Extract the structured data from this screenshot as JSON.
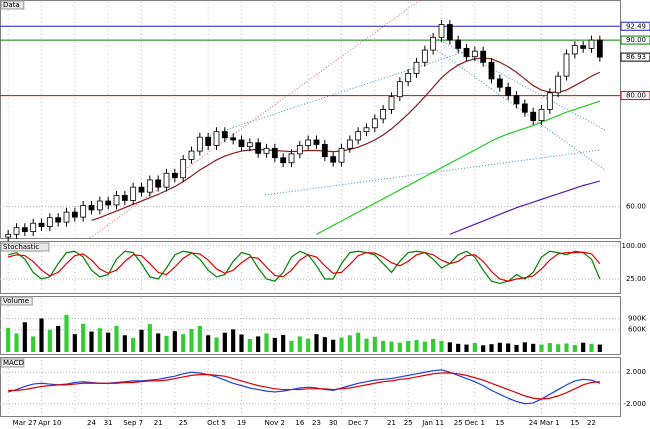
{
  "chart_data": [
    {
      "type": "candlestick",
      "title": "Data",
      "categories": [
        null,
        null,
        "Mar 27",
        null,
        null,
        "Apr 10",
        null,
        null,
        null,
        null,
        "24",
        null,
        "31",
        null,
        null,
        "Sep 7",
        null,
        null,
        "21",
        null,
        null,
        "25",
        null,
        null,
        null,
        "Oct 5",
        null,
        null,
        "19",
        null,
        null,
        null,
        "Nov 2",
        null,
        null,
        "16",
        null,
        "23",
        null,
        "30",
        null,
        null,
        "Dec 7",
        null,
        null,
        null,
        "21",
        null,
        "25",
        null,
        null,
        "Jan 11",
        null,
        null,
        "25",
        null,
        "Dec 1",
        null,
        null,
        "15",
        null,
        null,
        null,
        "24",
        null,
        "Mar 1",
        null,
        null,
        "15",
        null,
        "22",
        null
      ],
      "open": [
        54.5,
        55.0,
        56.2,
        55.5,
        57.0,
        56.4,
        58.0,
        57.2,
        59.0,
        58.1,
        60.2,
        59.4,
        61.0,
        60.3,
        62.0,
        61.1,
        63.5,
        62.6,
        64.8,
        63.5,
        66.0,
        65.2,
        68.5,
        70.0,
        72.5,
        71.0,
        73.5,
        72.4,
        72.0,
        70.8,
        71.5,
        69.6,
        70.5,
        68.8,
        67.9,
        69.5,
        71.0,
        72.0,
        71.2,
        69.0,
        68.0,
        70.5,
        72.0,
        73.5,
        74.2,
        75.8,
        77.5,
        79.8,
        82.5,
        84.0,
        86.0,
        88.2,
        90.5,
        92.8,
        90.0,
        88.5,
        87.0,
        88.0,
        86.0,
        83.0,
        81.5,
        80.0,
        78.5,
        77.0,
        75.5,
        77.5,
        80.5,
        83.5,
        87.5,
        89.0,
        88.5,
        90.0
      ],
      "high": [
        55.8,
        57.0,
        57.0,
        57.8,
        57.8,
        58.8,
        58.8,
        59.8,
        59.8,
        61.0,
        61.0,
        61.8,
        61.8,
        62.8,
        62.8,
        64.3,
        64.3,
        65.6,
        65.6,
        66.8,
        66.8,
        69.3,
        70.8,
        73.3,
        73.3,
        74.3,
        74.3,
        73.2,
        72.8,
        72.3,
        72.3,
        71.3,
        71.3,
        69.6,
        70.3,
        71.8,
        72.8,
        72.8,
        72.0,
        69.8,
        71.3,
        72.8,
        74.3,
        75.0,
        76.6,
        78.3,
        80.6,
        83.3,
        84.8,
        86.8,
        89.0,
        91.3,
        93.6,
        93.6,
        90.8,
        89.3,
        88.8,
        88.8,
        86.8,
        83.8,
        82.3,
        80.8,
        79.3,
        77.8,
        78.3,
        81.3,
        84.3,
        88.3,
        89.8,
        89.8,
        90.8,
        90.8
      ],
      "low": [
        53.7,
        54.2,
        54.7,
        54.7,
        55.6,
        55.6,
        56.4,
        56.4,
        57.3,
        57.3,
        58.6,
        58.6,
        59.5,
        59.5,
        60.3,
        60.3,
        61.8,
        61.8,
        62.7,
        62.7,
        64.4,
        64.4,
        67.7,
        69.2,
        70.2,
        70.2,
        71.6,
        71.2,
        70.0,
        70.0,
        68.8,
        68.8,
        68.0,
        67.1,
        67.1,
        68.7,
        70.2,
        70.4,
        68.2,
        67.2,
        67.2,
        69.7,
        71.2,
        72.7,
        73.4,
        75.0,
        76.7,
        79.0,
        81.7,
        83.2,
        85.2,
        87.4,
        89.7,
        89.2,
        87.7,
        86.2,
        86.2,
        85.2,
        82.2,
        80.7,
        79.2,
        77.7,
        76.2,
        74.7,
        74.7,
        76.7,
        79.7,
        82.7,
        86.7,
        87.7,
        87.7,
        86.1
      ],
      "close": [
        55.0,
        56.2,
        55.5,
        57.0,
        56.4,
        58.0,
        57.2,
        59.0,
        58.1,
        60.2,
        59.4,
        61.0,
        60.3,
        62.0,
        61.1,
        63.5,
        62.6,
        64.8,
        63.5,
        66.0,
        65.2,
        68.5,
        70.0,
        72.5,
        71.0,
        73.5,
        72.4,
        72.0,
        70.8,
        71.5,
        69.6,
        70.5,
        68.8,
        67.9,
        69.5,
        71.0,
        72.0,
        71.2,
        69.0,
        68.0,
        70.5,
        72.0,
        73.5,
        74.2,
        75.8,
        77.5,
        79.8,
        82.5,
        84.0,
        86.0,
        88.2,
        90.5,
        92.8,
        90.0,
        88.5,
        87.0,
        88.0,
        86.0,
        83.0,
        81.5,
        80.0,
        78.5,
        77.0,
        75.5,
        77.5,
        80.5,
        83.5,
        87.5,
        89.0,
        88.5,
        90.0,
        86.93
      ],
      "ylim": [
        54.7,
        96.5
      ],
      "yticks": [
        {
          "value": 60,
          "label": "60.00"
        }
      ],
      "levels": [
        {
          "value": 92.49,
          "color": "#2020c0"
        },
        {
          "value": 90,
          "label": "90.00",
          "color": "#008000"
        },
        {
          "value": 80,
          "label": "80.00",
          "color": "#e00000"
        }
      ],
      "overlays": [
        {
          "color": "#8b1a1a",
          "values": [
            null,
            null,
            null,
            null,
            null,
            null,
            null,
            null,
            null,
            null,
            57.5,
            58.0,
            58.6,
            59.2,
            59.8,
            60.4,
            61.0,
            61.6,
            62.2,
            62.9,
            63.6,
            64.5,
            65.5,
            66.6,
            67.5,
            68.4,
            69.1,
            69.6,
            70.0,
            70.2,
            70.3,
            70.2,
            70.1,
            70.0,
            69.9,
            70.0,
            70.1,
            70.1,
            70.0,
            69.9,
            70.0,
            70.3,
            70.7,
            71.3,
            72.0,
            72.9,
            74.0,
            75.3,
            76.7,
            78.2,
            79.8,
            81.5,
            83.2,
            84.5,
            85.5,
            86.2,
            86.6,
            86.8,
            86.6,
            86.0,
            85.2,
            84.2,
            83.0,
            81.8,
            81.0,
            80.6,
            80.6,
            81.0,
            81.8,
            82.6,
            83.5,
            84.2
          ]
        },
        {
          "color": "#22cc22",
          "values": [
            null,
            null,
            null,
            null,
            null,
            null,
            null,
            null,
            null,
            null,
            null,
            null,
            null,
            null,
            null,
            null,
            null,
            null,
            null,
            null,
            null,
            null,
            null,
            null,
            null,
            null,
            null,
            null,
            null,
            null,
            null,
            null,
            null,
            null,
            null,
            null,
            null,
            55.0,
            55.8,
            56.6,
            57.4,
            58.2,
            59.0,
            59.8,
            60.6,
            61.4,
            62.2,
            63.0,
            63.8,
            64.6,
            65.4,
            66.2,
            67.0,
            67.8,
            68.6,
            69.4,
            70.2,
            71.0,
            71.8,
            72.5,
            73.1,
            73.6,
            74.1,
            74.6,
            75.2,
            75.8,
            76.4,
            77.0,
            77.5,
            78.0,
            78.5,
            79.0
          ]
        },
        {
          "color": "#5a1ab0",
          "values": [
            null,
            null,
            null,
            null,
            null,
            null,
            null,
            null,
            null,
            null,
            null,
            null,
            null,
            null,
            null,
            null,
            null,
            null,
            null,
            null,
            null,
            null,
            null,
            null,
            null,
            null,
            null,
            null,
            null,
            null,
            null,
            null,
            null,
            null,
            null,
            null,
            null,
            null,
            null,
            null,
            null,
            null,
            null,
            null,
            null,
            null,
            null,
            null,
            null,
            null,
            null,
            null,
            null,
            55.0,
            55.6,
            56.2,
            56.8,
            57.4,
            58.0,
            58.6,
            59.2,
            59.8,
            60.3,
            60.8,
            61.3,
            61.8,
            62.3,
            62.8,
            63.3,
            63.8,
            64.2,
            64.6
          ]
        }
      ]
    },
    {
      "type": "line",
      "title": "Stochastic",
      "ylim": [
        0,
        100
      ],
      "yticks": [
        {
          "value": 100,
          "label": "100.00"
        },
        {
          "value": 25,
          "label": "25.00"
        }
      ],
      "series": [
        {
          "color": "#008000",
          "values": [
            80,
            85,
            70,
            40,
            25,
            30,
            60,
            85,
            88,
            75,
            45,
            30,
            35,
            70,
            88,
            85,
            60,
            30,
            25,
            50,
            80,
            88,
            85,
            70,
            45,
            30,
            35,
            65,
            85,
            80,
            50,
            25,
            20,
            40,
            75,
            88,
            80,
            55,
            25,
            25,
            60,
            85,
            88,
            85,
            80,
            60,
            40,
            65,
            85,
            88,
            85,
            70,
            50,
            60,
            80,
            88,
            75,
            45,
            20,
            15,
            20,
            35,
            25,
            40,
            75,
            88,
            85,
            80,
            88,
            85,
            70,
            25
          ]
        },
        {
          "color": "#e00000",
          "values": [
            75,
            80,
            78,
            65,
            45,
            32,
            40,
            60,
            78,
            82,
            68,
            48,
            38,
            45,
            65,
            80,
            78,
            60,
            40,
            35,
            52,
            72,
            84,
            82,
            68,
            48,
            38,
            45,
            62,
            75,
            72,
            52,
            33,
            30,
            45,
            68,
            80,
            75,
            55,
            38,
            40,
            58,
            78,
            85,
            84,
            75,
            62,
            55,
            65,
            80,
            85,
            80,
            68,
            60,
            65,
            78,
            80,
            65,
            42,
            25,
            20,
            25,
            28,
            32,
            48,
            68,
            82,
            85,
            85,
            86,
            82,
            60
          ]
        }
      ]
    },
    {
      "type": "bar",
      "title": "Volume",
      "ylim": [
        0,
        1400000
      ],
      "up_color": "#33cc33",
      "down_color": "#000000",
      "yticks": [
        {
          "value": 900000,
          "label": "900K"
        },
        {
          "value": 600000,
          "label": "600K"
        }
      ],
      "values": [
        650000,
        500000,
        800000,
        420000,
        900000,
        600000,
        700000,
        1000000,
        480000,
        760000,
        550000,
        640000,
        520000,
        700000,
        450000,
        380000,
        600000,
        750000,
        500000,
        430000,
        560000,
        480000,
        620000,
        700000,
        450000,
        390000,
        520000,
        610000,
        470000,
        350000,
        420000,
        500000,
        380000,
        460000,
        300000,
        420000,
        360000,
        480000,
        400000,
        330000,
        390000,
        450000,
        520000,
        360000,
        410000,
        300000,
        280000,
        250000,
        300000,
        320000,
        280000,
        350000,
        300000,
        260000,
        220000,
        200000,
        240000,
        180000,
        210000,
        250000,
        230000,
        190000,
        260000,
        220000,
        200000,
        240000,
        210000,
        230000,
        190000,
        250000,
        220000,
        200000
      ]
    },
    {
      "type": "line",
      "title": "MACD",
      "ylim": [
        -3.3,
        3.3
      ],
      "yticks": [
        {
          "value": 2,
          "label": "2.000"
        },
        {
          "value": -2,
          "label": "-2.000"
        }
      ],
      "series": [
        {
          "color": "#2040e0",
          "values": [
            -0.5,
            -0.2,
            0.2,
            0.5,
            0.6,
            0.5,
            0.4,
            0.5,
            0.7,
            0.8,
            0.7,
            0.6,
            0.6,
            0.7,
            0.8,
            0.9,
            0.9,
            1.0,
            1.1,
            1.3,
            1.5,
            1.8,
            2.0,
            1.9,
            1.7,
            1.4,
            1.0,
            0.6,
            0.3,
            0.0,
            -0.2,
            -0.4,
            -0.5,
            -0.4,
            -0.2,
            0.0,
            0.1,
            0.0,
            -0.2,
            -0.3,
            0.0,
            0.3,
            0.6,
            0.8,
            1.0,
            1.1,
            1.2,
            1.4,
            1.6,
            1.8,
            2.0,
            2.2,
            2.3,
            2.0,
            1.6,
            1.2,
            0.8,
            0.3,
            -0.3,
            -0.8,
            -1.3,
            -1.7,
            -2.0,
            -1.9,
            -1.4,
            -0.8,
            -0.2,
            0.4,
            0.9,
            1.1,
            1.0,
            0.6
          ]
        },
        {
          "color": "#e00000",
          "values": [
            -0.3,
            -0.3,
            -0.2,
            0.0,
            0.2,
            0.3,
            0.4,
            0.4,
            0.5,
            0.6,
            0.6,
            0.6,
            0.6,
            0.6,
            0.7,
            0.7,
            0.8,
            0.9,
            0.9,
            1.0,
            1.2,
            1.4,
            1.6,
            1.7,
            1.7,
            1.6,
            1.5,
            1.2,
            0.9,
            0.6,
            0.3,
            0.1,
            -0.1,
            -0.2,
            -0.2,
            -0.2,
            -0.1,
            -0.1,
            -0.1,
            -0.2,
            -0.1,
            0.0,
            0.2,
            0.4,
            0.6,
            0.8,
            0.9,
            1.1,
            1.2,
            1.4,
            1.6,
            1.8,
            1.9,
            1.9,
            1.8,
            1.6,
            1.3,
            1.0,
            0.6,
            0.2,
            -0.2,
            -0.6,
            -1.0,
            -1.3,
            -1.4,
            -1.3,
            -1.0,
            -0.6,
            -0.1,
            0.4,
            0.7,
            0.8
          ]
        }
      ]
    }
  ]
}
